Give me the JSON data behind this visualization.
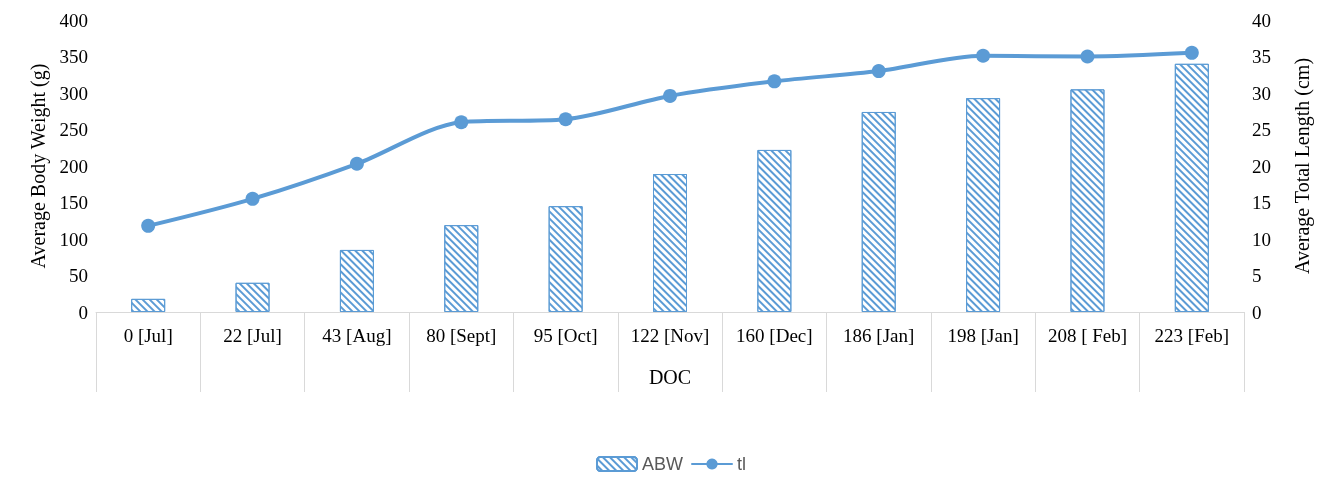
{
  "chart_data": {
    "type": "bar",
    "xlabel": "DOC",
    "ylabel": "Average Body Weight (g)",
    "y2label": "Average Total Length (cm)",
    "categories": [
      "0 [Jul]",
      "22 [Jul]",
      "43 [Aug]",
      "80 [Sept]",
      "95 [Oct]",
      "122 [Nov]",
      "160 [Dec]",
      "186 [Jan]",
      "198 [Jan]",
      "208 [ Feb]",
      "223 [Feb]"
    ],
    "series": [
      {
        "name": "ABW",
        "color": "#5b9bd5",
        "values": [
          18,
          40,
          85,
          119,
          145,
          189,
          222,
          274,
          293,
          305,
          340
        ]
      },
      {
        "name": "tl",
        "type": "line",
        "axis": "y2",
        "color": "#5b9bd5",
        "marker": "circle",
        "values": [
          11.8,
          15.5,
          20.3,
          26.0,
          26.4,
          29.6,
          31.6,
          33.0,
          35.1,
          35.0,
          35.5
        ]
      }
    ],
    "ylim": [
      0,
      400
    ],
    "yticks": [
      0,
      50,
      100,
      150,
      200,
      250,
      300,
      350,
      400
    ],
    "y2lim": [
      0,
      40
    ],
    "y2ticks": [
      0,
      5,
      10,
      15,
      20,
      25,
      30,
      35,
      40
    ],
    "grid": false,
    "legend": "bottom"
  }
}
